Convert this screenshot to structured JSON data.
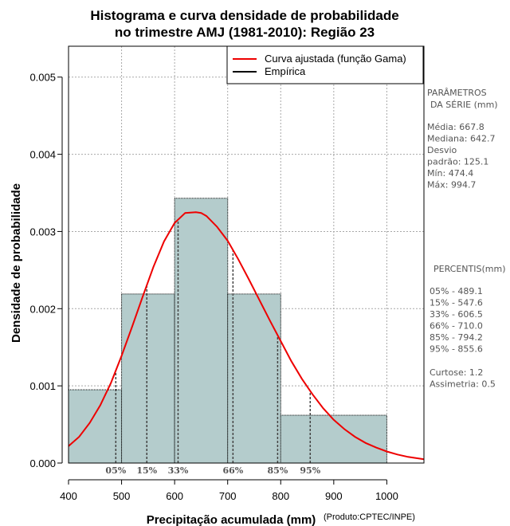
{
  "chart_data": {
    "type": "bar",
    "title_line1": "Histograma e curva densidade de probabilidade",
    "title_line2": "no trimestre AMJ (1981-2010): Região 23",
    "xlabel": "Precipitação acumulada (mm)",
    "ylabel": "Densidade de probabilidade",
    "credit": "(Produto:CPTEC/INPE)",
    "xlim": [
      400,
      1070
    ],
    "ylim": [
      0,
      0.0054
    ],
    "x_ticks": [
      400,
      500,
      600,
      700,
      800,
      900,
      1000
    ],
    "y_ticks": [
      0,
      0.001,
      0.002,
      0.003,
      0.004,
      0.005
    ],
    "y_tick_labels": [
      "0.000",
      "0.001",
      "0.002",
      "0.003",
      "0.004",
      "0.005"
    ],
    "grid": true,
    "bins": [
      {
        "x0": 400,
        "x1": 500,
        "density": 0.00095
      },
      {
        "x0": 500,
        "x1": 600,
        "density": 0.00219
      },
      {
        "x0": 600,
        "x1": 700,
        "density": 0.00343
      },
      {
        "x0": 700,
        "x1": 800,
        "density": 0.00219
      },
      {
        "x0": 800,
        "x1": 1000,
        "density": 0.00062
      }
    ],
    "bar_color": "#b4cccc",
    "curve_color": "#ee0000",
    "fitted_curve": {
      "x": [
        400,
        420,
        440,
        460,
        480,
        500,
        520,
        540,
        560,
        580,
        600,
        620,
        640,
        650,
        660,
        680,
        700,
        720,
        740,
        760,
        780,
        800,
        820,
        840,
        860,
        880,
        900,
        920,
        940,
        960,
        980,
        1000,
        1020,
        1040,
        1070
      ],
      "y": [
        0.00022,
        0.00034,
        0.00052,
        0.00075,
        0.00104,
        0.00139,
        0.00177,
        0.00216,
        0.00254,
        0.00287,
        0.00311,
        0.00324,
        0.00325,
        0.00324,
        0.0032,
        0.00306,
        0.00288,
        0.00264,
        0.00238,
        0.00211,
        0.00184,
        0.00158,
        0.00132,
        0.00109,
        0.00089,
        0.00071,
        0.00056,
        0.00044,
        0.00034,
        0.00026,
        0.0002,
        0.00015,
        0.00011,
        8e-05,
        5e-05
      ]
    },
    "legend": {
      "position": "top-right",
      "entries": [
        {
          "label": "Curva ajustada (função Gama)",
          "color": "#ee0000"
        },
        {
          "label": "Empírica",
          "color": "#000000"
        }
      ]
    },
    "percentile_lines": [
      {
        "label": "05%",
        "x": 489.1
      },
      {
        "label": "15%",
        "x": 547.6
      },
      {
        "label": "33%",
        "x": 606.5
      },
      {
        "label": "66%",
        "x": 710.0
      },
      {
        "label": "85%",
        "x": 794.2
      },
      {
        "label": "95%",
        "x": 855.6
      }
    ]
  },
  "side_panel": {
    "params_title_1": "PARÂMETROS",
    "params_title_2": "DA SÉRIE (mm)",
    "params": [
      "Média:  667.8",
      "Mediana:  642.7",
      "Desvio",
      "padrão:  125.1",
      "Mín:  474.4",
      "Máx:  994.7"
    ],
    "percentis_title": "PERCENTIS(mm)",
    "percentis": [
      "05% -  489.1",
      "15% -  547.6",
      "33% -  606.5",
      "66% -  710.0",
      "85% -  794.2",
      "95% -  855.6"
    ],
    "stats": [
      "Curtose:  1.2",
      "Assimetria:  0.5"
    ]
  }
}
